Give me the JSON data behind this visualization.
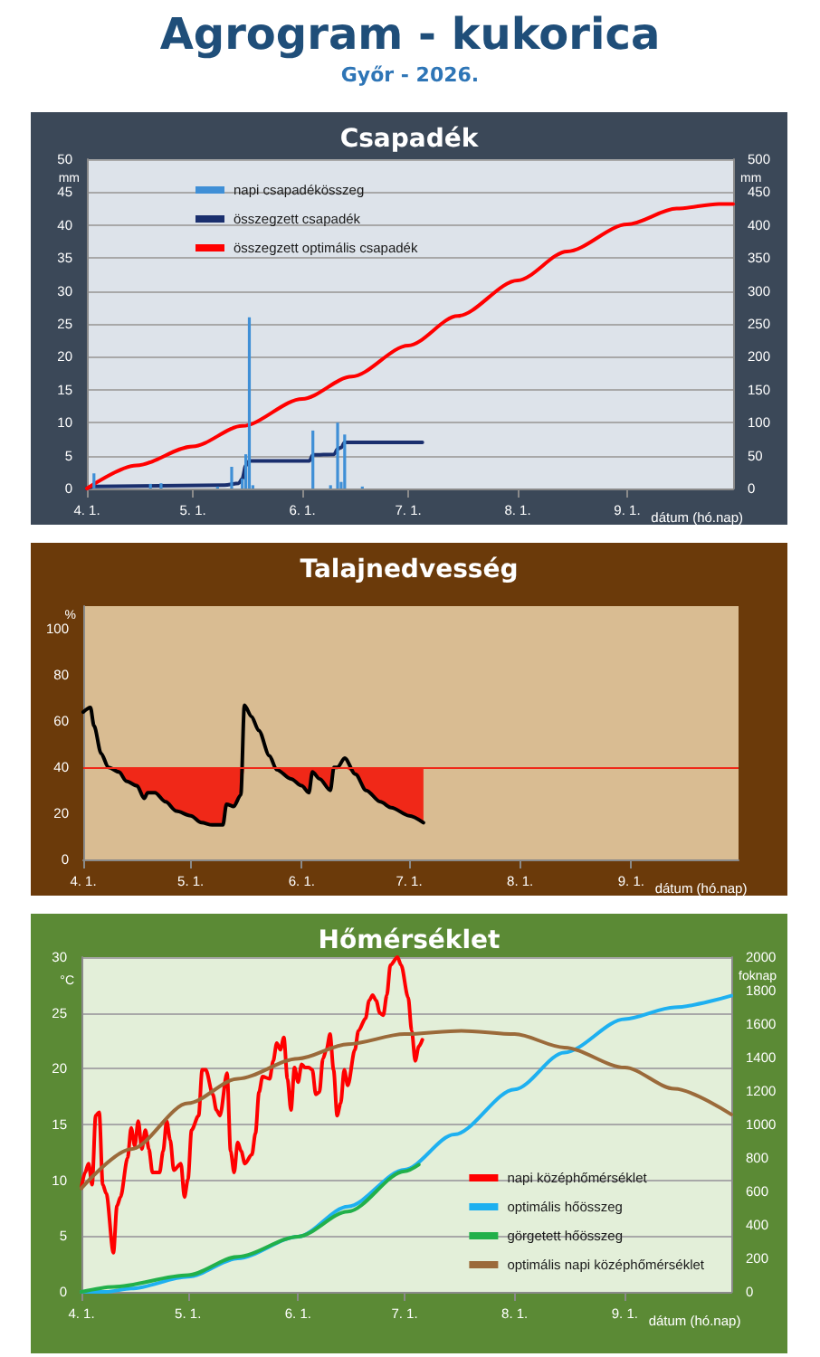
{
  "chart_data": [
    {
      "type": "bar",
      "title": "Csapadék",
      "annotations": [
        "Agrogram - kukorica",
        "Győr - 2026."
      ],
      "xlabel": "dátum (hó.nap)",
      "ylabel": "mm",
      "y2label": "mm",
      "xlim": [
        "2026-04-01",
        "2026-10-01"
      ],
      "xticks": [
        {
          "value": "2026-04-01",
          "label": "4. 1."
        },
        {
          "value": "2026-05-01",
          "label": "5. 1."
        },
        {
          "value": "2026-06-01",
          "label": "6. 1."
        },
        {
          "value": "2026-07-01",
          "label": "7. 1."
        },
        {
          "value": "2026-08-01",
          "label": "8. 1."
        },
        {
          "value": "2026-09-01",
          "label": "9. 1."
        }
      ],
      "ylim": [
        0,
        50
      ],
      "yticks": [
        0,
        5,
        10,
        15,
        20,
        25,
        30,
        35,
        40,
        45,
        50
      ],
      "y2lim": [
        0,
        500
      ],
      "y2ticks": [
        0,
        50,
        100,
        150,
        200,
        250,
        300,
        350,
        400,
        450,
        500
      ],
      "grid": "y",
      "legend": "top left",
      "marker": "none",
      "series": [
        {
          "name": "napi csapadékösszeg",
          "color": "#3f8fd6",
          "x": [
            "2026-04-03",
            "2026-04-19",
            "2026-04-22",
            "2026-05-08",
            "2026-05-12",
            "2026-05-15",
            "2026-05-16",
            "2026-05-17",
            "2026-05-18",
            "2026-06-04",
            "2026-06-09",
            "2026-06-11",
            "2026-06-12",
            "2026-06-13",
            "2026-06-18"
          ],
          "values": [
            2.3,
            0.7,
            0.8,
            0.3,
            3.3,
            1.5,
            5.2,
            26,
            0.5,
            8.8,
            0.5,
            10,
            1,
            8.2,
            0.3
          ]
        },
        {
          "name": "összegzett csapadék",
          "type": "line",
          "axis": "y2",
          "color": "#1a2f6e",
          "x": [
            "2026-04-01",
            "2026-04-03",
            "2026-05-10",
            "2026-05-14",
            "2026-05-15",
            "2026-05-16",
            "2026-05-17",
            "2026-06-03",
            "2026-06-04",
            "2026-06-10",
            "2026-06-11",
            "2026-06-12",
            "2026-06-13",
            "2026-07-05"
          ],
          "values": [
            0,
            3,
            5,
            8,
            15,
            35,
            42,
            42,
            51,
            52,
            60,
            62,
            70,
            70
          ]
        },
        {
          "name": "összegzett optimális csapadék",
          "type": "line",
          "axis": "y2",
          "color": "#ff0000",
          "x": [
            "2026-04-01",
            "2026-04-15",
            "2026-05-01",
            "2026-05-15",
            "2026-06-01",
            "2026-06-15",
            "2026-07-01",
            "2026-07-15",
            "2026-08-01",
            "2026-08-15",
            "2026-09-01",
            "2026-09-15",
            "2026-09-27",
            "2026-10-01"
          ],
          "values": [
            0,
            35,
            64,
            95,
            136,
            170,
            217,
            262,
            316,
            360,
            401,
            425,
            432,
            432
          ]
        }
      ]
    },
    {
      "type": "line",
      "title": "Talajnedvesség",
      "xlabel": "dátum (hó.nap)",
      "ylabel": "%",
      "xlim": [
        "2026-04-01",
        "2026-10-01"
      ],
      "xticks": [
        {
          "value": "2026-04-01",
          "label": "4. 1."
        },
        {
          "value": "2026-05-01",
          "label": "5. 1."
        },
        {
          "value": "2026-06-01",
          "label": "6. 1."
        },
        {
          "value": "2026-07-01",
          "label": "7. 1."
        },
        {
          "value": "2026-08-01",
          "label": "8. 1."
        },
        {
          "value": "2026-09-01",
          "label": "9. 1."
        }
      ],
      "ylim": [
        0,
        110
      ],
      "yticks": [
        0,
        20,
        40,
        60,
        80,
        100
      ],
      "marker": "none",
      "ref_lines": [
        {
          "axis": "y",
          "value": 40,
          "color": "#f02818"
        }
      ],
      "series": [
        {
          "color": "#000000",
          "x": [
            "2026-04-01",
            "2026-04-03",
            "2026-04-04",
            "2026-04-06",
            "2026-04-08",
            "2026-04-11",
            "2026-04-13",
            "2026-04-16",
            "2026-04-18",
            "2026-04-19",
            "2026-04-21",
            "2026-04-24",
            "2026-04-27",
            "2026-05-01",
            "2026-05-04",
            "2026-05-07",
            "2026-05-10",
            "2026-05-11",
            "2026-05-13",
            "2026-05-15",
            "2026-05-16",
            "2026-05-18",
            "2026-05-20",
            "2026-05-23",
            "2026-05-25",
            "2026-05-29",
            "2026-06-01",
            "2026-06-03",
            "2026-06-04",
            "2026-06-06",
            "2026-06-09",
            "2026-06-10",
            "2026-06-11",
            "2026-06-13",
            "2026-06-16",
            "2026-06-19",
            "2026-06-23",
            "2026-06-26",
            "2026-07-01",
            "2026-07-05"
          ],
          "values": [
            64,
            66,
            58,
            46,
            40,
            38,
            34,
            32,
            26.5,
            29,
            29,
            25,
            21,
            19,
            16,
            15,
            15,
            24,
            23,
            28,
            67,
            62,
            56,
            45,
            39,
            35,
            32,
            29,
            38,
            35,
            30,
            40,
            40,
            44,
            37,
            30,
            25,
            22.5,
            19,
            16
          ],
          "lower": [
            40,
            40,
            40,
            40,
            40,
            38,
            34,
            32,
            26.5,
            29,
            29,
            25,
            21,
            19,
            16,
            15,
            15,
            24,
            23,
            28,
            40,
            40,
            40,
            40,
            39,
            35,
            32,
            29,
            38,
            35,
            30,
            40,
            40,
            40,
            37,
            30,
            25,
            22.5,
            19,
            16
          ],
          "upper": [
            40,
            40,
            40,
            40,
            40,
            40,
            40,
            40,
            40,
            40,
            40,
            40,
            40,
            40,
            40,
            40,
            40,
            40,
            40,
            40,
            40,
            40,
            40,
            40,
            40,
            40,
            40,
            40,
            40,
            40,
            40,
            40,
            40,
            40,
            40,
            40,
            40,
            40,
            40,
            40
          ]
        }
      ]
    },
    {
      "type": "line",
      "title": "Hőmérséklet",
      "xlabel": "dátum (hó.nap)",
      "ylabel": "°C",
      "y2label": "foknap",
      "xlim": [
        "2026-04-01",
        "2026-10-01"
      ],
      "xticks": [
        {
          "value": "2026-04-01",
          "label": "4. 1."
        },
        {
          "value": "2026-05-01",
          "label": "5. 1."
        },
        {
          "value": "2026-06-01",
          "label": "6. 1."
        },
        {
          "value": "2026-07-01",
          "label": "7. 1."
        },
        {
          "value": "2026-08-01",
          "label": "8. 1."
        },
        {
          "value": "2026-09-01",
          "label": "9. 1."
        }
      ],
      "ylim": [
        0,
        30
      ],
      "yticks": [
        0,
        5,
        10,
        15,
        20,
        25,
        30
      ],
      "y2lim": [
        0,
        2000
      ],
      "y2ticks": [
        0,
        200,
        400,
        600,
        800,
        1000,
        1200,
        1400,
        1600,
        1800,
        2000
      ],
      "grid": "y",
      "legend": "bottom right",
      "marker": "none",
      "series": [
        {
          "name": "napi középhőmérséklet",
          "color": "#ff0000",
          "x": [
            "2026-04-01",
            "2026-04-02",
            "2026-04-03",
            "2026-04-04",
            "2026-04-05",
            "2026-04-06",
            "2026-04-07",
            "2026-04-08",
            "2026-04-10",
            "2026-04-11",
            "2026-04-12",
            "2026-04-14",
            "2026-04-15",
            "2026-04-16",
            "2026-04-17",
            "2026-04-18",
            "2026-04-19",
            "2026-04-20",
            "2026-04-21",
            "2026-04-23",
            "2026-04-24",
            "2026-04-25",
            "2026-04-26",
            "2026-04-27",
            "2026-04-29",
            "2026-04-30",
            "2026-05-01",
            "2026-05-02",
            "2026-05-04",
            "2026-05-05",
            "2026-05-06",
            "2026-05-08",
            "2026-05-09",
            "2026-05-10",
            "2026-05-12",
            "2026-05-13",
            "2026-05-14",
            "2026-05-15",
            "2026-05-16",
            "2026-05-17",
            "2026-05-19",
            "2026-05-20",
            "2026-05-21",
            "2026-05-22",
            "2026-05-24",
            "2026-05-25",
            "2026-05-26",
            "2026-05-27",
            "2026-05-28",
            "2026-05-29",
            "2026-05-30",
            "2026-05-31",
            "2026-06-01",
            "2026-06-02",
            "2026-06-03",
            "2026-06-04",
            "2026-06-05",
            "2026-06-06",
            "2026-06-07",
            "2026-06-08",
            "2026-06-09",
            "2026-06-10",
            "2026-06-11",
            "2026-06-12",
            "2026-06-13",
            "2026-06-14",
            "2026-06-15",
            "2026-06-17",
            "2026-06-18",
            "2026-06-20",
            "2026-06-21",
            "2026-06-22",
            "2026-06-23",
            "2026-06-24",
            "2026-06-25",
            "2026-06-26",
            "2026-06-27",
            "2026-06-29",
            "2026-06-30",
            "2026-07-02",
            "2026-07-03",
            "2026-07-04",
            "2026-07-05",
            "2026-07-06"
          ],
          "values": [
            9.3,
            10.7,
            11.5,
            9.6,
            15.8,
            16.1,
            9.6,
            8.8,
            3.5,
            7.7,
            8.5,
            12,
            14.7,
            13.1,
            15.3,
            12.8,
            14.5,
            12.8,
            10.7,
            10.7,
            12.6,
            15.3,
            13.6,
            10.9,
            11.5,
            8.5,
            10.1,
            14.5,
            15.8,
            19.9,
            19.9,
            17.7,
            16.3,
            15.8,
            19.6,
            12.6,
            10.7,
            13.4,
            12.6,
            11.5,
            12.3,
            14.2,
            17.9,
            19.3,
            19.1,
            20.7,
            22.3,
            21.7,
            22.8,
            19.1,
            16.3,
            20.1,
            18.8,
            20.4,
            20.1,
            20.1,
            19.9,
            17.7,
            17.9,
            20.9,
            21.7,
            23.1,
            19.9,
            15.8,
            16.9,
            19.9,
            18.5,
            21.7,
            23.4,
            24.5,
            26.1,
            26.6,
            26.1,
            25,
            24.8,
            26.6,
            29.3,
            30,
            29.3,
            26.4,
            23.4,
            20.7,
            22,
            22.6
          ]
        },
        {
          "name": "optimális hőösszeg",
          "axis": "y2",
          "color": "#1eb0f0",
          "x": [
            "2026-04-01",
            "2026-04-08",
            "2026-04-15",
            "2026-05-01",
            "2026-05-15",
            "2026-06-01",
            "2026-06-15",
            "2026-07-01",
            "2026-07-15",
            "2026-08-01",
            "2026-08-15",
            "2026-09-01",
            "2026-09-15",
            "2026-10-01"
          ],
          "values": [
            0,
            0,
            20,
            90,
            200,
            330,
            510,
            730,
            940,
            1210,
            1430,
            1630,
            1700,
            1770
          ]
        },
        {
          "name": "görgetett hőösszeg",
          "axis": "y2",
          "color": "#22b04a",
          "x": [
            "2026-04-01",
            "2026-04-10",
            "2026-05-01",
            "2026-05-15",
            "2026-06-01",
            "2026-06-15",
            "2026-07-01",
            "2026-07-05"
          ],
          "values": [
            0,
            30,
            100,
            210,
            330,
            480,
            720,
            760
          ]
        },
        {
          "name": "optimális napi középhőmérséklet",
          "color": "#9b6a3a",
          "x": [
            "2026-04-01",
            "2026-04-15",
            "2026-05-01",
            "2026-05-15",
            "2026-06-01",
            "2026-06-15",
            "2026-07-01",
            "2026-07-17",
            "2026-08-01",
            "2026-08-15",
            "2026-09-01",
            "2026-09-15",
            "2026-10-01"
          ],
          "values": [
            9.3,
            12.8,
            16.9,
            19.1,
            20.9,
            22.2,
            23.1,
            23.4,
            23.1,
            21.9,
            20.1,
            18.2,
            15.9
          ]
        }
      ]
    }
  ]
}
